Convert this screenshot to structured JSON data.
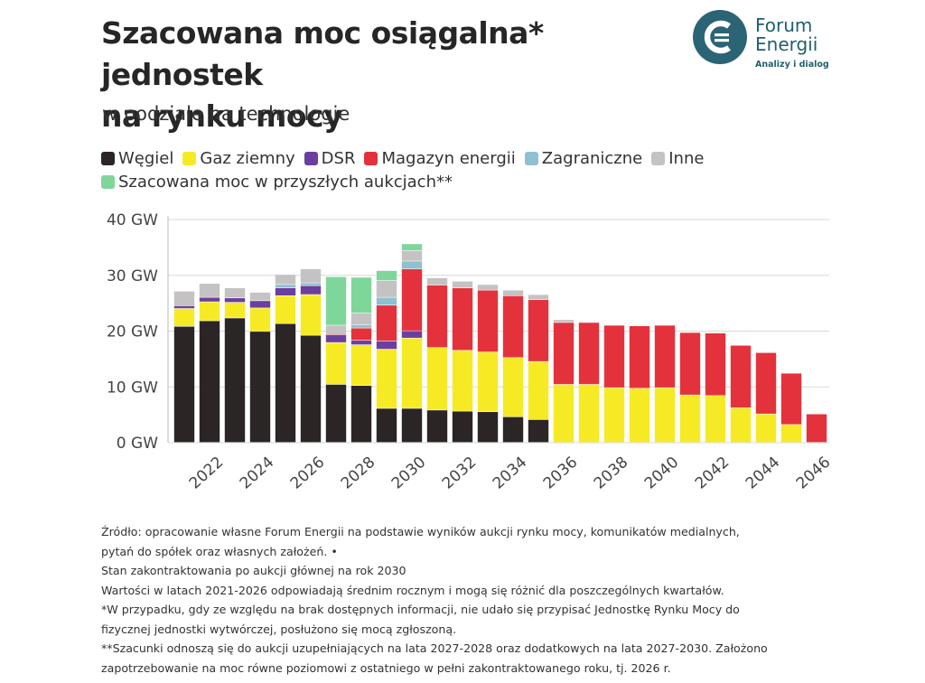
{
  "header": {
    "title_line1": "Szacowana moc osiągalna* jednostek",
    "title_line2": "na rynku mocy",
    "subtitle": "w podziale na technologie"
  },
  "logo": {
    "name_line1": "Forum",
    "name_line2": "Energii",
    "tagline": "Analizy i dialog",
    "colors": {
      "circle": "#2b6475",
      "mark": "#ffffff"
    }
  },
  "legend": [
    {
      "label": "Węgiel",
      "color": "#2b2526"
    },
    {
      "label": "Gaz ziemny",
      "color": "#f6ea25"
    },
    {
      "label": "DSR",
      "color": "#6b3fa0"
    },
    {
      "label": "Magazyn energii",
      "color": "#e4323c"
    },
    {
      "label": "Zagraniczne",
      "color": "#8fc0cf"
    },
    {
      "label": "Inne",
      "color": "#c4c2c3"
    },
    {
      "label": "Szacowana moc w przyszłych aukcjach**",
      "color": "#7fd69a"
    }
  ],
  "chart_data": {
    "type": "bar",
    "stacked": true,
    "title": "Szacowana moc osiągalna* jednostek na rynku mocy",
    "subtitle": "w podziale na technologie",
    "unit": "GW",
    "ylim": [
      0,
      40
    ],
    "y_ticks": [
      "0 GW",
      "10 GW",
      "20 GW",
      "30 GW",
      "40 GW"
    ],
    "y_tick_values": [
      0,
      10,
      20,
      30,
      40
    ],
    "grid": true,
    "legend_position": "top-left",
    "x_tick_labels": [
      "2022",
      "2024",
      "2026",
      "2028",
      "2030",
      "2032",
      "2034",
      "2036",
      "2038",
      "2040",
      "2042",
      "2044",
      "2046"
    ],
    "categories": [
      "2021",
      "2022",
      "2023",
      "2024",
      "2025",
      "2026",
      "2027",
      "2028",
      "2029",
      "2030",
      "2031",
      "2032",
      "2033",
      "2034",
      "2035",
      "2036",
      "2037",
      "2038",
      "2039",
      "2040",
      "2041",
      "2042",
      "2043",
      "2044",
      "2045",
      "2046"
    ],
    "series": [
      {
        "name": "Węgiel",
        "color": "#2b2526",
        "values": [
          20.8,
          21.8,
          22.3,
          19.9,
          21.3,
          19.2,
          10.4,
          10.2,
          6.1,
          6.1,
          5.8,
          5.6,
          5.5,
          4.6,
          4.1,
          0,
          0,
          0,
          0,
          0,
          0,
          0,
          0,
          0,
          0,
          0
        ]
      },
      {
        "name": "Gaz ziemny",
        "color": "#f6ea25",
        "values": [
          3.2,
          3.4,
          2.8,
          4.2,
          5.0,
          7.3,
          7.5,
          7.3,
          10.6,
          12.6,
          11.2,
          10.9,
          10.7,
          10.6,
          10.4,
          10.4,
          10.4,
          9.8,
          9.7,
          9.8,
          8.5,
          8.4,
          6.2,
          5.1,
          3.2,
          0
        ]
      },
      {
        "name": "DSR",
        "color": "#6b3fa0",
        "values": [
          0.5,
          0.8,
          0.8,
          1.3,
          1.4,
          1.6,
          1.4,
          0.8,
          1.5,
          1.3,
          0,
          0,
          0,
          0,
          0,
          0,
          0,
          0,
          0,
          0,
          0,
          0,
          0,
          0,
          0,
          0
        ]
      },
      {
        "name": "Magazyn energii",
        "color": "#e4323c",
        "values": [
          0,
          0,
          0,
          0,
          0,
          0,
          0.2,
          2.2,
          6.4,
          11.1,
          11.2,
          11.2,
          11.1,
          11.1,
          11.1,
          11.1,
          11.1,
          11.2,
          11.2,
          11.2,
          11.2,
          11.2,
          11.2,
          11.0,
          9.2,
          5.1
        ]
      },
      {
        "name": "Zagraniczne",
        "color": "#8fc0cf",
        "values": [
          0,
          0,
          0,
          0,
          0.6,
          0.5,
          0,
          0.6,
          1.4,
          1.4,
          0,
          0,
          0,
          0,
          0,
          0,
          0,
          0,
          0,
          0,
          0,
          0,
          0,
          0,
          0,
          0
        ]
      },
      {
        "name": "Inne",
        "color": "#c4c2c3",
        "values": [
          2.6,
          2.5,
          1.8,
          1.5,
          1.8,
          2.5,
          1.5,
          2.1,
          3.0,
          1.9,
          1.3,
          1.2,
          1.0,
          1.0,
          0.9,
          0.5,
          0,
          0,
          0,
          0,
          0,
          0,
          0,
          0,
          0,
          0
        ]
      },
      {
        "name": "Szacowana moc w przyszłych aukcjach**",
        "color": "#7fd69a",
        "values": [
          0,
          0,
          0,
          0,
          0,
          0,
          8.7,
          6.4,
          1.8,
          1.2,
          0,
          0,
          0,
          0,
          0,
          0,
          0,
          0,
          0,
          0,
          0,
          0,
          0,
          0,
          0,
          0
        ]
      }
    ]
  },
  "notes": {
    "line1": "Źródło: opracowanie własne Forum Energii na podstawie wyników aukcji rynku mocy, komunikatów medialnych,",
    "line2": "pytań do spółek oraz własnych założeń. •",
    "line3": "Stan zakontraktowania po aukcji głównej na rok 2030",
    "line4": "Wartości w latach 2021-2026 odpowiadają średnim rocznym i mogą się różnić dla poszczególnych kwartałów.",
    "line5": "*W przypadku, gdy ze względu na brak dostępnych informacji, nie udało się przypisać Jednostkę Rynku Mocy do",
    "line6": "fizycznej jednostki wytwórczej, posłużono się mocą zgłoszoną.",
    "line7": "**Szacunki odnoszą się do aukcji uzupełniających na lata 2027-2028 oraz dodatkowych na lata 2027-2030. Założono",
    "line8": "zapotrzebowanie na moc równe poziomowi z ostatniego w pełni zakontraktowanego roku, tj. 2026 r."
  }
}
